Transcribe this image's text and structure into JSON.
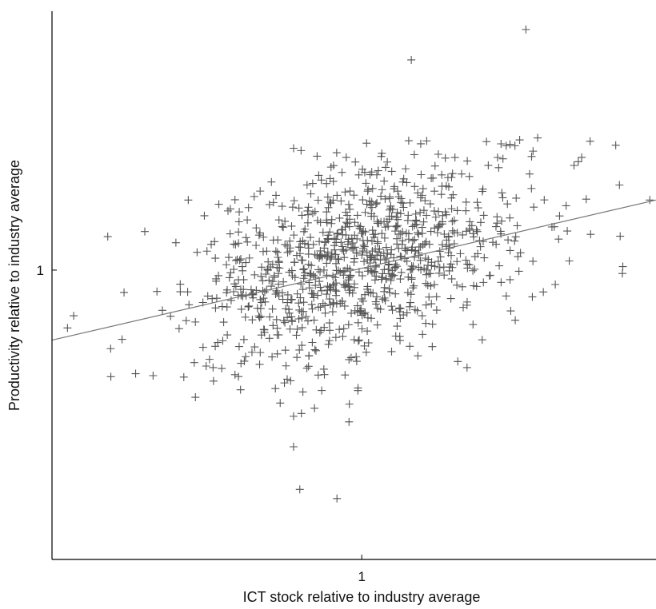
{
  "chart_data": {
    "type": "scatter",
    "title": "",
    "xlabel": "ICT stock relative to industry average",
    "ylabel": "Productivity relative to industry average",
    "x_ticks": [
      {
        "value": 1,
        "label": "1"
      }
    ],
    "y_ticks": [
      {
        "value": 1,
        "label": "1"
      }
    ],
    "xlim": [
      -1.0,
      0.95
    ],
    "ylim": [
      -0.95,
      0.85
    ],
    "grid": false,
    "legend": "none",
    "marker": "plus",
    "colors": {
      "points": "#555555",
      "trend": "#777777",
      "axes": "#000000"
    },
    "trendline": {
      "x": [
        -1.0,
        0.95
      ],
      "y": [
        -0.23,
        0.23
      ]
    },
    "highlight_points": [
      {
        "x": 0.53,
        "y": 0.79
      },
      {
        "x": 0.16,
        "y": 0.69
      },
      {
        "x": 0.82,
        "y": 0.41
      },
      {
        "x": -0.22,
        "y": 0.4
      },
      {
        "x": -0.05,
        "y": 0.37
      },
      {
        "x": 0.71,
        "y": 0.37
      },
      {
        "x": 0.93,
        "y": 0.23
      },
      {
        "x": -0.56,
        "y": 0.23
      },
      {
        "x": -0.82,
        "y": 0.11
      },
      {
        "x": -0.6,
        "y": 0.09
      },
      {
        "x": 0.67,
        "y": 0.03
      },
      {
        "x": -0.93,
        "y": -0.15
      },
      {
        "x": -0.95,
        "y": -0.19
      },
      {
        "x": -0.73,
        "y": -0.34
      },
      {
        "x": -0.48,
        "y": -0.32
      },
      {
        "x": -0.19,
        "y": -0.4
      },
      {
        "x": 0.31,
        "y": -0.3
      },
      {
        "x": 0.34,
        "y": -0.32
      },
      {
        "x": -0.04,
        "y": -0.44
      },
      {
        "x": -0.22,
        "y": -0.48
      },
      {
        "x": -0.22,
        "y": -0.58
      },
      {
        "x": -0.2,
        "y": -0.72
      },
      {
        "x": -0.08,
        "y": -0.75
      },
      {
        "x": -0.81,
        "y": -0.35
      }
    ],
    "cloud": {
      "n": 980,
      "center_x": 0.0,
      "center_y": 0.03,
      "sd_x": 0.27,
      "sd_y": 0.16,
      "slope": 0.24,
      "x_range": [
        -0.95,
        0.85
      ],
      "y_range": [
        -0.62,
        0.44
      ],
      "seed": 7
    }
  }
}
